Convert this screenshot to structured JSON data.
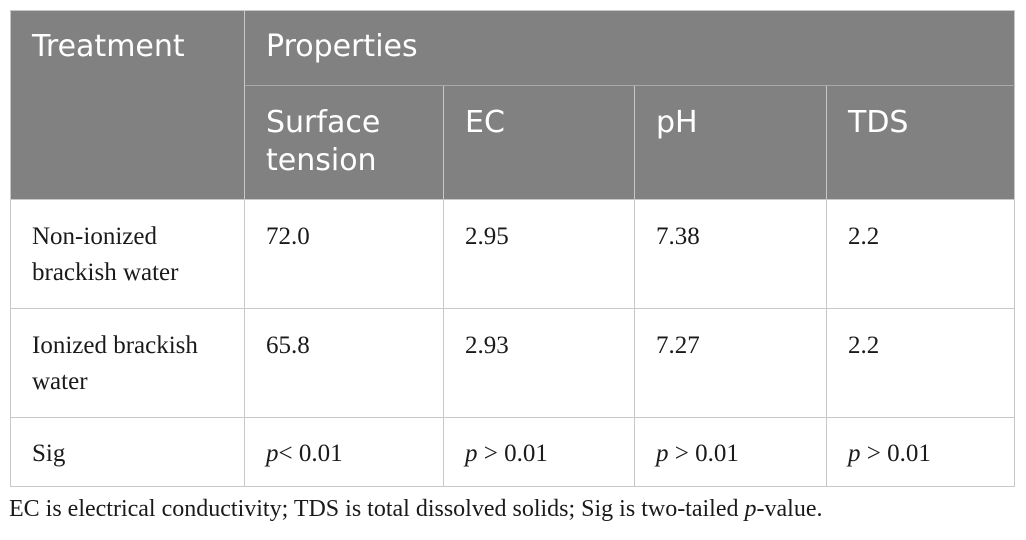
{
  "table": {
    "header": {
      "treatment": "Treatment",
      "properties": "Properties",
      "columns": [
        "Surface tension",
        "EC",
        "pH",
        "TDS"
      ]
    },
    "rows": [
      {
        "treatment": "Non-ionized brackish water",
        "values": [
          "72.0",
          "2.95",
          "7.38",
          "2.2"
        ]
      },
      {
        "treatment": "Ionized brackish water",
        "values": [
          "65.8",
          "2.93",
          "7.27",
          "2.2"
        ]
      }
    ],
    "sig_row": {
      "label": "Sig",
      "p_symbol": "p",
      "values": [
        "< 0.01",
        " > 0.01",
        " > 0.01",
        " > 0.01"
      ]
    }
  },
  "footnote": {
    "text_before": "EC is electrical conductivity; TDS is total dissolved solids; Sig is two-tailed ",
    "italic": "p",
    "text_after": "-value."
  }
}
